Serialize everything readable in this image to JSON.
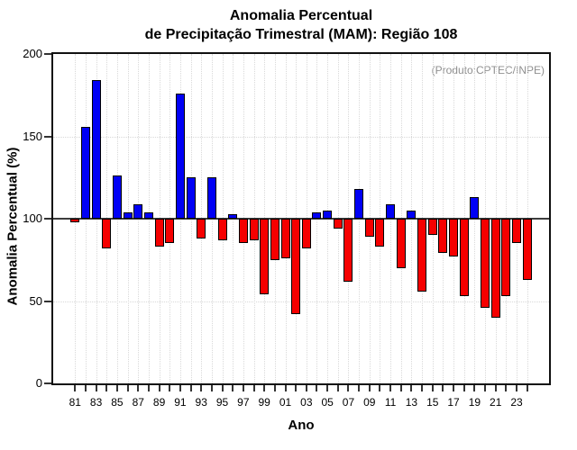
{
  "chart_data": {
    "type": "bar",
    "title": "Anomalia Percentual de Precipitação Trimestral (MAM): Região 108",
    "title_lines": [
      "Anomalia Percentual",
      "de Precipitação Trimestral (MAM): Região 108"
    ],
    "annotation": "(Produto:CPTEC/INPE)",
    "xlabel": "Ano",
    "ylabel": "Anomalia Percentual (%)",
    "ylim": [
      0,
      200
    ],
    "yticks": [
      0,
      50,
      100,
      150,
      200
    ],
    "baseline": 100,
    "grid": {
      "vertical": "every year, dotted",
      "horizontal": [
        50,
        150
      ]
    },
    "legend": "none",
    "categories": [
      "81",
      "82",
      "83",
      "84",
      "85",
      "86",
      "87",
      "88",
      "89",
      "90",
      "91",
      "92",
      "93",
      "94",
      "95",
      "96",
      "97",
      "98",
      "99",
      "00",
      "01",
      "02",
      "03",
      "04",
      "05",
      "06",
      "07",
      "08",
      "09",
      "10",
      "11",
      "12",
      "13",
      "14",
      "15",
      "16",
      "17",
      "18",
      "19",
      "20",
      "21",
      "22",
      "23",
      "24"
    ],
    "x_tick_labels": [
      "81",
      "83",
      "85",
      "87",
      "89",
      "91",
      "93",
      "95",
      "97",
      "99",
      "01",
      "03",
      "05",
      "07",
      "09",
      "11",
      "13",
      "15",
      "17",
      "19",
      "21",
      "23"
    ],
    "values": [
      98,
      156,
      184,
      82,
      126,
      104,
      109,
      104,
      83,
      85,
      176,
      125,
      88,
      125,
      87,
      103,
      85,
      87,
      54,
      75,
      76,
      42,
      82,
      104,
      105,
      94,
      62,
      118,
      89,
      83,
      109,
      70,
      105,
      56,
      90,
      79,
      77,
      53,
      113,
      46,
      40,
      53,
      85,
      63
    ],
    "colors": {
      "above_baseline": "#0000F5",
      "below_baseline": "#F50000",
      "bar_outline": "#000000",
      "annotation_text": "#8f8f8f",
      "grid": "#d9d9d9",
      "axis": "#111111"
    }
  }
}
